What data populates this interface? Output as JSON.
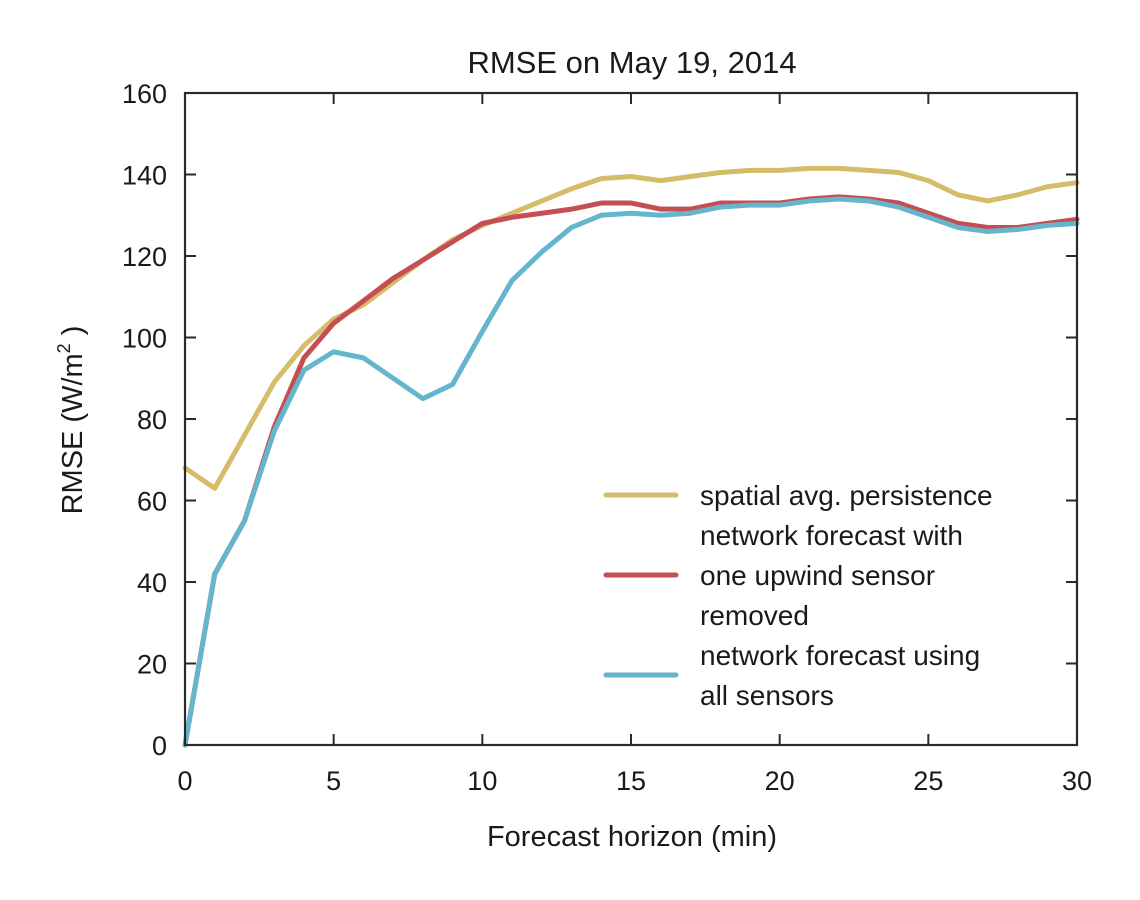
{
  "chart_data": {
    "type": "line",
    "title": "RMSE on May 19, 2014",
    "xlabel": "Forecast horizon (min)",
    "ylabel": {
      "prefix": "RMSE (W/m",
      "superscript": "2",
      "suffix": " )"
    },
    "xlim": [
      0,
      30
    ],
    "ylim": [
      0,
      160
    ],
    "xticks": [
      0,
      5,
      10,
      15,
      20,
      25,
      30
    ],
    "yticks": [
      0,
      20,
      40,
      60,
      80,
      100,
      120,
      140,
      160
    ],
    "grid": false,
    "legend_position": "lower-right",
    "x": [
      0,
      1,
      2,
      3,
      4,
      5,
      6,
      7,
      8,
      9,
      10,
      11,
      12,
      13,
      14,
      15,
      16,
      17,
      18,
      19,
      20,
      21,
      22,
      23,
      24,
      25,
      26,
      27,
      28,
      29,
      30
    ],
    "series": [
      {
        "name": [
          "spatial avg. persistence"
        ],
        "color": "#d4bc6a",
        "values": [
          68,
          63,
          76,
          89,
          98,
          104.5,
          108,
          113.5,
          119,
          124,
          127.5,
          130.5,
          133.5,
          136.5,
          139,
          139.5,
          138.5,
          139.5,
          140.5,
          141,
          141,
          141.5,
          141.5,
          141,
          140.5,
          138.5,
          135,
          133.5,
          135,
          137,
          138
        ]
      },
      {
        "name": [
          "network forecast with",
          "one upwind sensor",
          "removed"
        ],
        "color": "#c44e52",
        "values": [
          0,
          42,
          55,
          78,
          95,
          103.5,
          109,
          114.5,
          119,
          123.5,
          128,
          129.5,
          130.5,
          131.5,
          133,
          133,
          131.5,
          131.5,
          133,
          133,
          133,
          134,
          134.5,
          134,
          133,
          130.5,
          128,
          127,
          127,
          128,
          129
        ]
      },
      {
        "name": [
          "network forecast using",
          "all sensors"
        ],
        "color": "#64b5cd",
        "values": [
          0,
          42,
          55,
          77,
          92,
          96.5,
          95,
          90,
          85,
          88.5,
          101.5,
          114,
          121,
          127,
          130,
          130.5,
          130,
          130.5,
          132,
          132.5,
          132.5,
          133.5,
          134,
          133.5,
          132,
          129.5,
          127,
          126,
          126.5,
          127.5,
          128
        ]
      }
    ]
  }
}
